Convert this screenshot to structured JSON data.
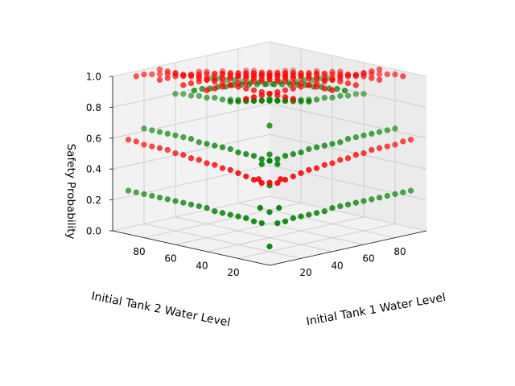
{
  "chart_data": {
    "type": "scatter",
    "projection": "3d",
    "title": "",
    "xlabel": "Initial Tank 1 Water Level",
    "ylabel": "Initial Tank 2 Water Level",
    "zlabel": "Safety Probability",
    "x_ticks": [
      20,
      40,
      60,
      80
    ],
    "y_ticks": [
      20,
      40,
      60,
      80
    ],
    "z_ticks": [
      "0.0",
      "0.2",
      "0.4",
      "0.6",
      "0.8",
      "1.0"
    ],
    "xlim": [
      0,
      100
    ],
    "ylim": [
      0,
      100
    ],
    "zlim": [
      0,
      1
    ],
    "grid": true,
    "legend": "none",
    "colors": {
      "series_a": "#ff0000",
      "series_b": "#008000"
    },
    "grid_x_levels": [
      10,
      15,
      20,
      25,
      30,
      35,
      40,
      45,
      50,
      55,
      60,
      65,
      70,
      75,
      80,
      85,
      90,
      95
    ],
    "series": [
      {
        "color": "#ff0000",
        "rows": [
          {
            "axis": "x",
            "at": 95,
            "range": [
              10,
              95
            ],
            "values": [
              0.99,
              0.99,
              0.98,
              0.97,
              0.96,
              0.95,
              0.93,
              0.92,
              0.9,
              0.88,
              0.87,
              0.85,
              0.84,
              0.83,
              0.82,
              0.81,
              0.81,
              0.8
            ]
          },
          {
            "axis": "y",
            "at": 95,
            "range": [
              10,
              95
            ],
            "values": [
              0.99,
              0.99,
              0.98,
              0.97,
              0.96,
              0.95,
              0.93,
              0.92,
              0.9,
              0.88,
              0.87,
              0.85,
              0.84,
              0.83,
              0.82,
              0.81,
              0.81,
              0.8
            ]
          },
          {
            "axis": "x",
            "at": 50,
            "range": [
              10,
              95
            ],
            "values": [
              1.0,
              1.0,
              1.0,
              1.0,
              1.0,
              0.99,
              0.99,
              0.98,
              0.98,
              0.97,
              0.97,
              0.96,
              0.96,
              0.95,
              0.95,
              0.94,
              0.94,
              0.93
            ]
          },
          {
            "axis": "y",
            "at": 50,
            "range": [
              10,
              95
            ],
            "values": [
              1.0,
              1.0,
              1.0,
              1.0,
              1.0,
              0.99,
              0.99,
              0.98,
              0.98,
              0.97,
              0.97,
              0.96,
              0.96,
              0.95,
              0.95,
              0.94,
              0.94,
              0.93
            ]
          },
          {
            "axis": "x",
            "at": 80,
            "range": [
              10,
              95
            ],
            "values": [
              1.0,
              1.0,
              1.0,
              0.99,
              0.99,
              0.98,
              0.97,
              0.96,
              0.95,
              0.94,
              0.93,
              0.92,
              0.91,
              0.9,
              0.89,
              0.88,
              0.88,
              0.87
            ]
          },
          {
            "axis": "y",
            "at": 80,
            "range": [
              10,
              95
            ],
            "values": [
              1.0,
              1.0,
              1.0,
              0.99,
              0.99,
              0.98,
              0.97,
              0.96,
              0.95,
              0.94,
              0.93,
              0.92,
              0.91,
              0.9,
              0.89,
              0.88,
              0.88,
              0.87
            ]
          },
          {
            "axis": "x",
            "at": 65,
            "range": [
              10,
              95
            ],
            "values": [
              1.0,
              1.0,
              1.0,
              1.0,
              0.99,
              0.99,
              0.98,
              0.98,
              0.97,
              0.96,
              0.95,
              0.94,
              0.93,
              0.93,
              0.92,
              0.91,
              0.9,
              0.9
            ]
          },
          {
            "axis": "y",
            "at": 65,
            "range": [
              10,
              95
            ],
            "values": [
              1.0,
              1.0,
              1.0,
              1.0,
              0.99,
              0.99,
              0.98,
              0.98,
              0.97,
              0.96,
              0.95,
              0.94,
              0.93,
              0.93,
              0.92,
              0.91,
              0.9,
              0.9
            ]
          },
          {
            "axis": "x",
            "at": 5,
            "range": [
              10,
              95
            ],
            "values": [
              0.5,
              0.51,
              0.52,
              0.53,
              0.54,
              0.54,
              0.55,
              0.55,
              0.56,
              0.56,
              0.57,
              0.57,
              0.58,
              0.58,
              0.58,
              0.58,
              0.59,
              0.59
            ]
          },
          {
            "axis": "y",
            "at": 5,
            "range": [
              10,
              95
            ],
            "values": [
              0.5,
              0.51,
              0.52,
              0.53,
              0.54,
              0.54,
              0.55,
              0.55,
              0.56,
              0.56,
              0.57,
              0.57,
              0.58,
              0.58,
              0.58,
              0.58,
              0.59,
              0.59
            ]
          },
          {
            "axis": "x",
            "at": 25,
            "range": [
              10,
              95
            ],
            "values": [
              1.0,
              1.0,
              1.0,
              1.0,
              1.0,
              1.0,
              1.0,
              1.0,
              1.0,
              1.0,
              1.0,
              1.0,
              1.0,
              1.0,
              1.0,
              1.0,
              1.0,
              1.0
            ]
          },
          {
            "axis": "y",
            "at": 25,
            "range": [
              10,
              95
            ],
            "values": [
              1.0,
              1.0,
              1.0,
              1.0,
              1.0,
              1.0,
              1.0,
              1.0,
              1.0,
              1.0,
              1.0,
              1.0,
              1.0,
              1.0,
              1.0,
              1.0,
              1.0,
              1.0
            ]
          }
        ],
        "points": [
          {
            "x": 8,
            "y": 8,
            "z": 0.5
          },
          {
            "x": 12,
            "y": 5,
            "z": 0.52
          },
          {
            "x": 5,
            "y": 12,
            "z": 0.52
          }
        ]
      },
      {
        "color": "#008000",
        "rows": [
          {
            "axis": "x",
            "at": 5,
            "range": [
              10,
              95
            ],
            "values": [
              0.24,
              0.24,
              0.25,
              0.25,
              0.25,
              0.25,
              0.25,
              0.26,
              0.26,
              0.26,
              0.26,
              0.26,
              0.26,
              0.26,
              0.26,
              0.26,
              0.26,
              0.26
            ]
          },
          {
            "axis": "y",
            "at": 5,
            "range": [
              10,
              95
            ],
            "values": [
              0.24,
              0.24,
              0.25,
              0.25,
              0.25,
              0.25,
              0.25,
              0.26,
              0.26,
              0.26,
              0.26,
              0.26,
              0.26,
              0.26,
              0.26,
              0.26,
              0.26,
              0.26
            ]
          },
          {
            "axis": "x",
            "at": 15,
            "range": [
              10,
              95
            ],
            "values": [
              0.6,
              0.61,
              0.61,
              0.62,
              0.62,
              0.62,
              0.63,
              0.63,
              0.63,
              0.63,
              0.63,
              0.64,
              0.64,
              0.64,
              0.64,
              0.64,
              0.64,
              0.64
            ]
          },
          {
            "axis": "y",
            "at": 15,
            "range": [
              10,
              95
            ],
            "values": [
              0.6,
              0.61,
              0.61,
              0.62,
              0.62,
              0.62,
              0.63,
              0.63,
              0.63,
              0.63,
              0.63,
              0.64,
              0.64,
              0.64,
              0.64,
              0.64,
              0.64,
              0.64
            ]
          },
          {
            "axis": "x",
            "at": 35,
            "range": [
              10,
              95
            ],
            "values": [
              0.96,
              0.95,
              0.94,
              0.93,
              0.92,
              0.91,
              0.9,
              0.89,
              0.88,
              0.87,
              0.86,
              0.85,
              0.85,
              0.84,
              0.84,
              0.83,
              0.83,
              0.82
            ]
          },
          {
            "axis": "y",
            "at": 35,
            "range": [
              10,
              95
            ],
            "values": [
              0.96,
              0.95,
              0.94,
              0.93,
              0.92,
              0.91,
              0.9,
              0.89,
              0.88,
              0.87,
              0.86,
              0.85,
              0.85,
              0.84,
              0.84,
              0.83,
              0.83,
              0.82
            ]
          },
          {
            "axis": "x",
            "at": 58,
            "range": [
              10,
              95
            ],
            "values": [
              0.98,
              0.98,
              0.97,
              0.97,
              0.96,
              0.96,
              0.95,
              0.94,
              0.93,
              0.92,
              0.91,
              0.91,
              0.9,
              0.89,
              0.89,
              0.88,
              0.88,
              0.87
            ]
          },
          {
            "axis": "y",
            "at": 58,
            "range": [
              10,
              95
            ],
            "values": [
              0.98,
              0.98,
              0.97,
              0.97,
              0.96,
              0.96,
              0.95,
              0.94,
              0.93,
              0.92,
              0.91,
              0.91,
              0.9,
              0.89,
              0.89,
              0.88,
              0.88,
              0.87
            ]
          }
        ],
        "points": [
          {
            "x": 5,
            "y": 5,
            "z": 0.1
          },
          {
            "x": 10,
            "y": 10,
            "z": 0.3
          },
          {
            "x": 15,
            "y": 15,
            "z": 0.45
          },
          {
            "x": 22,
            "y": 22,
            "z": 0.62
          },
          {
            "x": 28,
            "y": 28,
            "z": 0.78
          },
          {
            "x": 40,
            "y": 40,
            "z": 0.9
          },
          {
            "x": 8,
            "y": 2,
            "z": 0.35
          },
          {
            "x": 2,
            "y": 8,
            "z": 0.35
          }
        ]
      }
    ]
  }
}
